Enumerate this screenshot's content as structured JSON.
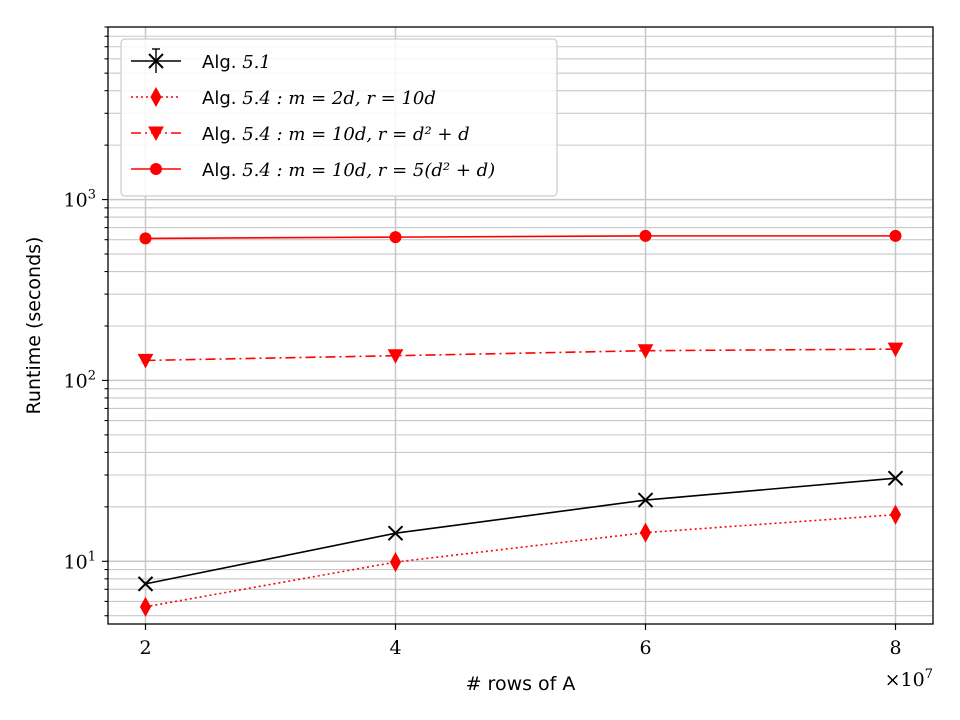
{
  "chart_data": {
    "type": "line",
    "title": "",
    "xlabel": "# rows of A",
    "ylabel": "Runtime (seconds)",
    "x_multiplier_label": "×10^7",
    "x": [
      2,
      4,
      6,
      8
    ],
    "xticks": [
      "2",
      "4",
      "6",
      "8"
    ],
    "xlim": [
      1.7,
      8.3
    ],
    "ylim": [
      4.5,
      9000
    ],
    "yscale": "log",
    "yticks": [
      {
        "value": 10,
        "base": "10",
        "exp": "1"
      },
      {
        "value": 100,
        "base": "10",
        "exp": "2"
      },
      {
        "value": 1000,
        "base": "10",
        "exp": "3"
      }
    ],
    "grid": true,
    "legend_position": "upper-left",
    "series": [
      {
        "name": "Alg. 5.1",
        "legend_prefix": "Alg.",
        "legend_math": "5.1",
        "color": "#000000",
        "linestyle": "solid",
        "marker": "x",
        "values": [
          7.5,
          14.3,
          21.8,
          28.8
        ]
      },
      {
        "name": "Alg. 5.4 : m = 2d, r = 10d",
        "legend_prefix": "Alg.",
        "legend_math": "5.4 : m = 2d, r = 10d",
        "color": "#ff0000",
        "linestyle": "dotted",
        "marker": "thin_diamond",
        "values": [
          5.6,
          9.9,
          14.4,
          18.1
        ]
      },
      {
        "name": "Alg. 5.4 : m = 10d, r = d^2 + d",
        "legend_prefix": "Alg.",
        "legend_math": "5.4 : m = 10d, r = d² + d",
        "color": "#ff0000",
        "linestyle": "dashdot",
        "marker": "triangle_down",
        "values": [
          129,
          137,
          146,
          149
        ]
      },
      {
        "name": "Alg. 5.4 : m = 10d, r = 5(d^2 + d)",
        "legend_prefix": "Alg.",
        "legend_math": "5.4 : m = 10d, r = 5(d² + d)",
        "color": "#ff0000",
        "linestyle": "solid",
        "marker": "circle",
        "values": [
          610,
          620,
          630,
          630
        ]
      }
    ]
  }
}
